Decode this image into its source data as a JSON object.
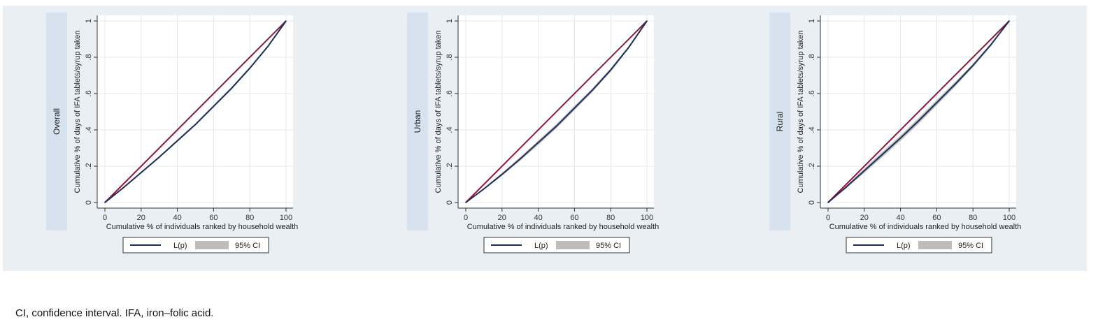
{
  "chart_data": [
    {
      "type": "line",
      "title": "Overall",
      "xlabel": "Cumulative % of individuals ranked by household wealth",
      "ylabel": "Cumulative % of days of IFA tablets/syrup taken",
      "xlim": [
        0,
        100
      ],
      "ylim": [
        0,
        1
      ],
      "xticks": [
        "0",
        "20",
        "40",
        "60",
        "80",
        "100"
      ],
      "yticks": [
        "0",
        ".2",
        ".4",
        ".6",
        ".8",
        "1"
      ],
      "grid": true,
      "legend": {
        "position": "bottom",
        "entries": [
          "L(p)",
          "95% CI"
        ]
      },
      "colors": {
        "equality": "#8b1a3c",
        "curve": "#1c2f55",
        "ci": "#bdbdbd"
      },
      "series": [
        {
          "name": "L(p)",
          "x": [
            0,
            10,
            20,
            30,
            40,
            50,
            60,
            70,
            80,
            90,
            100
          ],
          "y": [
            0,
            0.08,
            0.165,
            0.25,
            0.34,
            0.43,
            0.53,
            0.63,
            0.74,
            0.86,
            1.0
          ]
        },
        {
          "name": "",
          "x": [
            0,
            100
          ],
          "y": [
            0,
            1
          ]
        }
      ],
      "ci": {
        "x": [
          0,
          10,
          20,
          30,
          40,
          50,
          60,
          70,
          80,
          90,
          100
        ],
        "lower": [
          0,
          0.077,
          0.16,
          0.245,
          0.334,
          0.424,
          0.523,
          0.623,
          0.733,
          0.855,
          1.0
        ],
        "upper": [
          0,
          0.083,
          0.17,
          0.255,
          0.346,
          0.436,
          0.537,
          0.637,
          0.747,
          0.865,
          1.0
        ]
      }
    },
    {
      "type": "line",
      "title": "Urban",
      "xlabel": "Cumulative % of individuals ranked by household wealth",
      "ylabel": "Cumulative % of days of IFA tablets/syrup taken",
      "xlim": [
        0,
        100
      ],
      "ylim": [
        0,
        1
      ],
      "xticks": [
        "0",
        "20",
        "40",
        "60",
        "80",
        "100"
      ],
      "yticks": [
        "0",
        ".2",
        ".4",
        ".6",
        ".8",
        "1"
      ],
      "grid": true,
      "legend": {
        "position": "bottom",
        "entries": [
          "L(p)",
          "95% CI"
        ]
      },
      "colors": {
        "equality": "#8b1a3c",
        "curve": "#1c2f55",
        "ci": "#bdbdbd"
      },
      "series": [
        {
          "name": "L(p)",
          "x": [
            0,
            10,
            20,
            30,
            40,
            50,
            60,
            70,
            80,
            90,
            100
          ],
          "y": [
            0,
            0.075,
            0.155,
            0.24,
            0.33,
            0.42,
            0.52,
            0.62,
            0.73,
            0.855,
            1.0
          ]
        },
        {
          "name": "",
          "x": [
            0,
            100
          ],
          "y": [
            0,
            1
          ]
        }
      ],
      "ci": {
        "x": [
          0,
          10,
          20,
          30,
          40,
          50,
          60,
          70,
          80,
          90,
          100
        ],
        "lower": [
          0,
          0.07,
          0.147,
          0.23,
          0.318,
          0.408,
          0.508,
          0.61,
          0.72,
          0.848,
          1.0
        ],
        "upper": [
          0,
          0.08,
          0.163,
          0.25,
          0.342,
          0.432,
          0.532,
          0.63,
          0.74,
          0.862,
          1.0
        ]
      }
    },
    {
      "type": "line",
      "title": "Rural",
      "xlabel": "Cumulative % of individuals ranked by household wealth",
      "ylabel": "Cumulative % of days of IFA tablets/syrup taken",
      "xlim": [
        0,
        100
      ],
      "ylim": [
        0,
        1
      ],
      "xticks": [
        "0",
        "20",
        "40",
        "60",
        "80",
        "100"
      ],
      "yticks": [
        "0",
        ".2",
        ".4",
        ".6",
        ".8",
        "1"
      ],
      "grid": true,
      "legend": {
        "position": "bottom",
        "entries": [
          "L(p)",
          "95% CI"
        ]
      },
      "colors": {
        "equality": "#8b1a3c",
        "curve": "#1c2f55",
        "ci": "#bdbdbd"
      },
      "series": [
        {
          "name": "L(p)",
          "x": [
            0,
            10,
            20,
            30,
            40,
            50,
            60,
            70,
            80,
            90,
            100
          ],
          "y": [
            0,
            0.085,
            0.175,
            0.265,
            0.355,
            0.45,
            0.55,
            0.65,
            0.755,
            0.87,
            1.0
          ]
        },
        {
          "name": "",
          "x": [
            0,
            100
          ],
          "y": [
            0,
            1
          ]
        }
      ],
      "ci": {
        "x": [
          0,
          10,
          20,
          30,
          40,
          50,
          60,
          70,
          80,
          90,
          100
        ],
        "lower": [
          0,
          0.078,
          0.163,
          0.25,
          0.34,
          0.434,
          0.535,
          0.637,
          0.745,
          0.862,
          1.0
        ],
        "upper": [
          0,
          0.092,
          0.187,
          0.28,
          0.37,
          0.466,
          0.565,
          0.663,
          0.765,
          0.878,
          1.0
        ]
      }
    }
  ],
  "caption": "CI, confidence interval. IFA, iron–folic acid."
}
